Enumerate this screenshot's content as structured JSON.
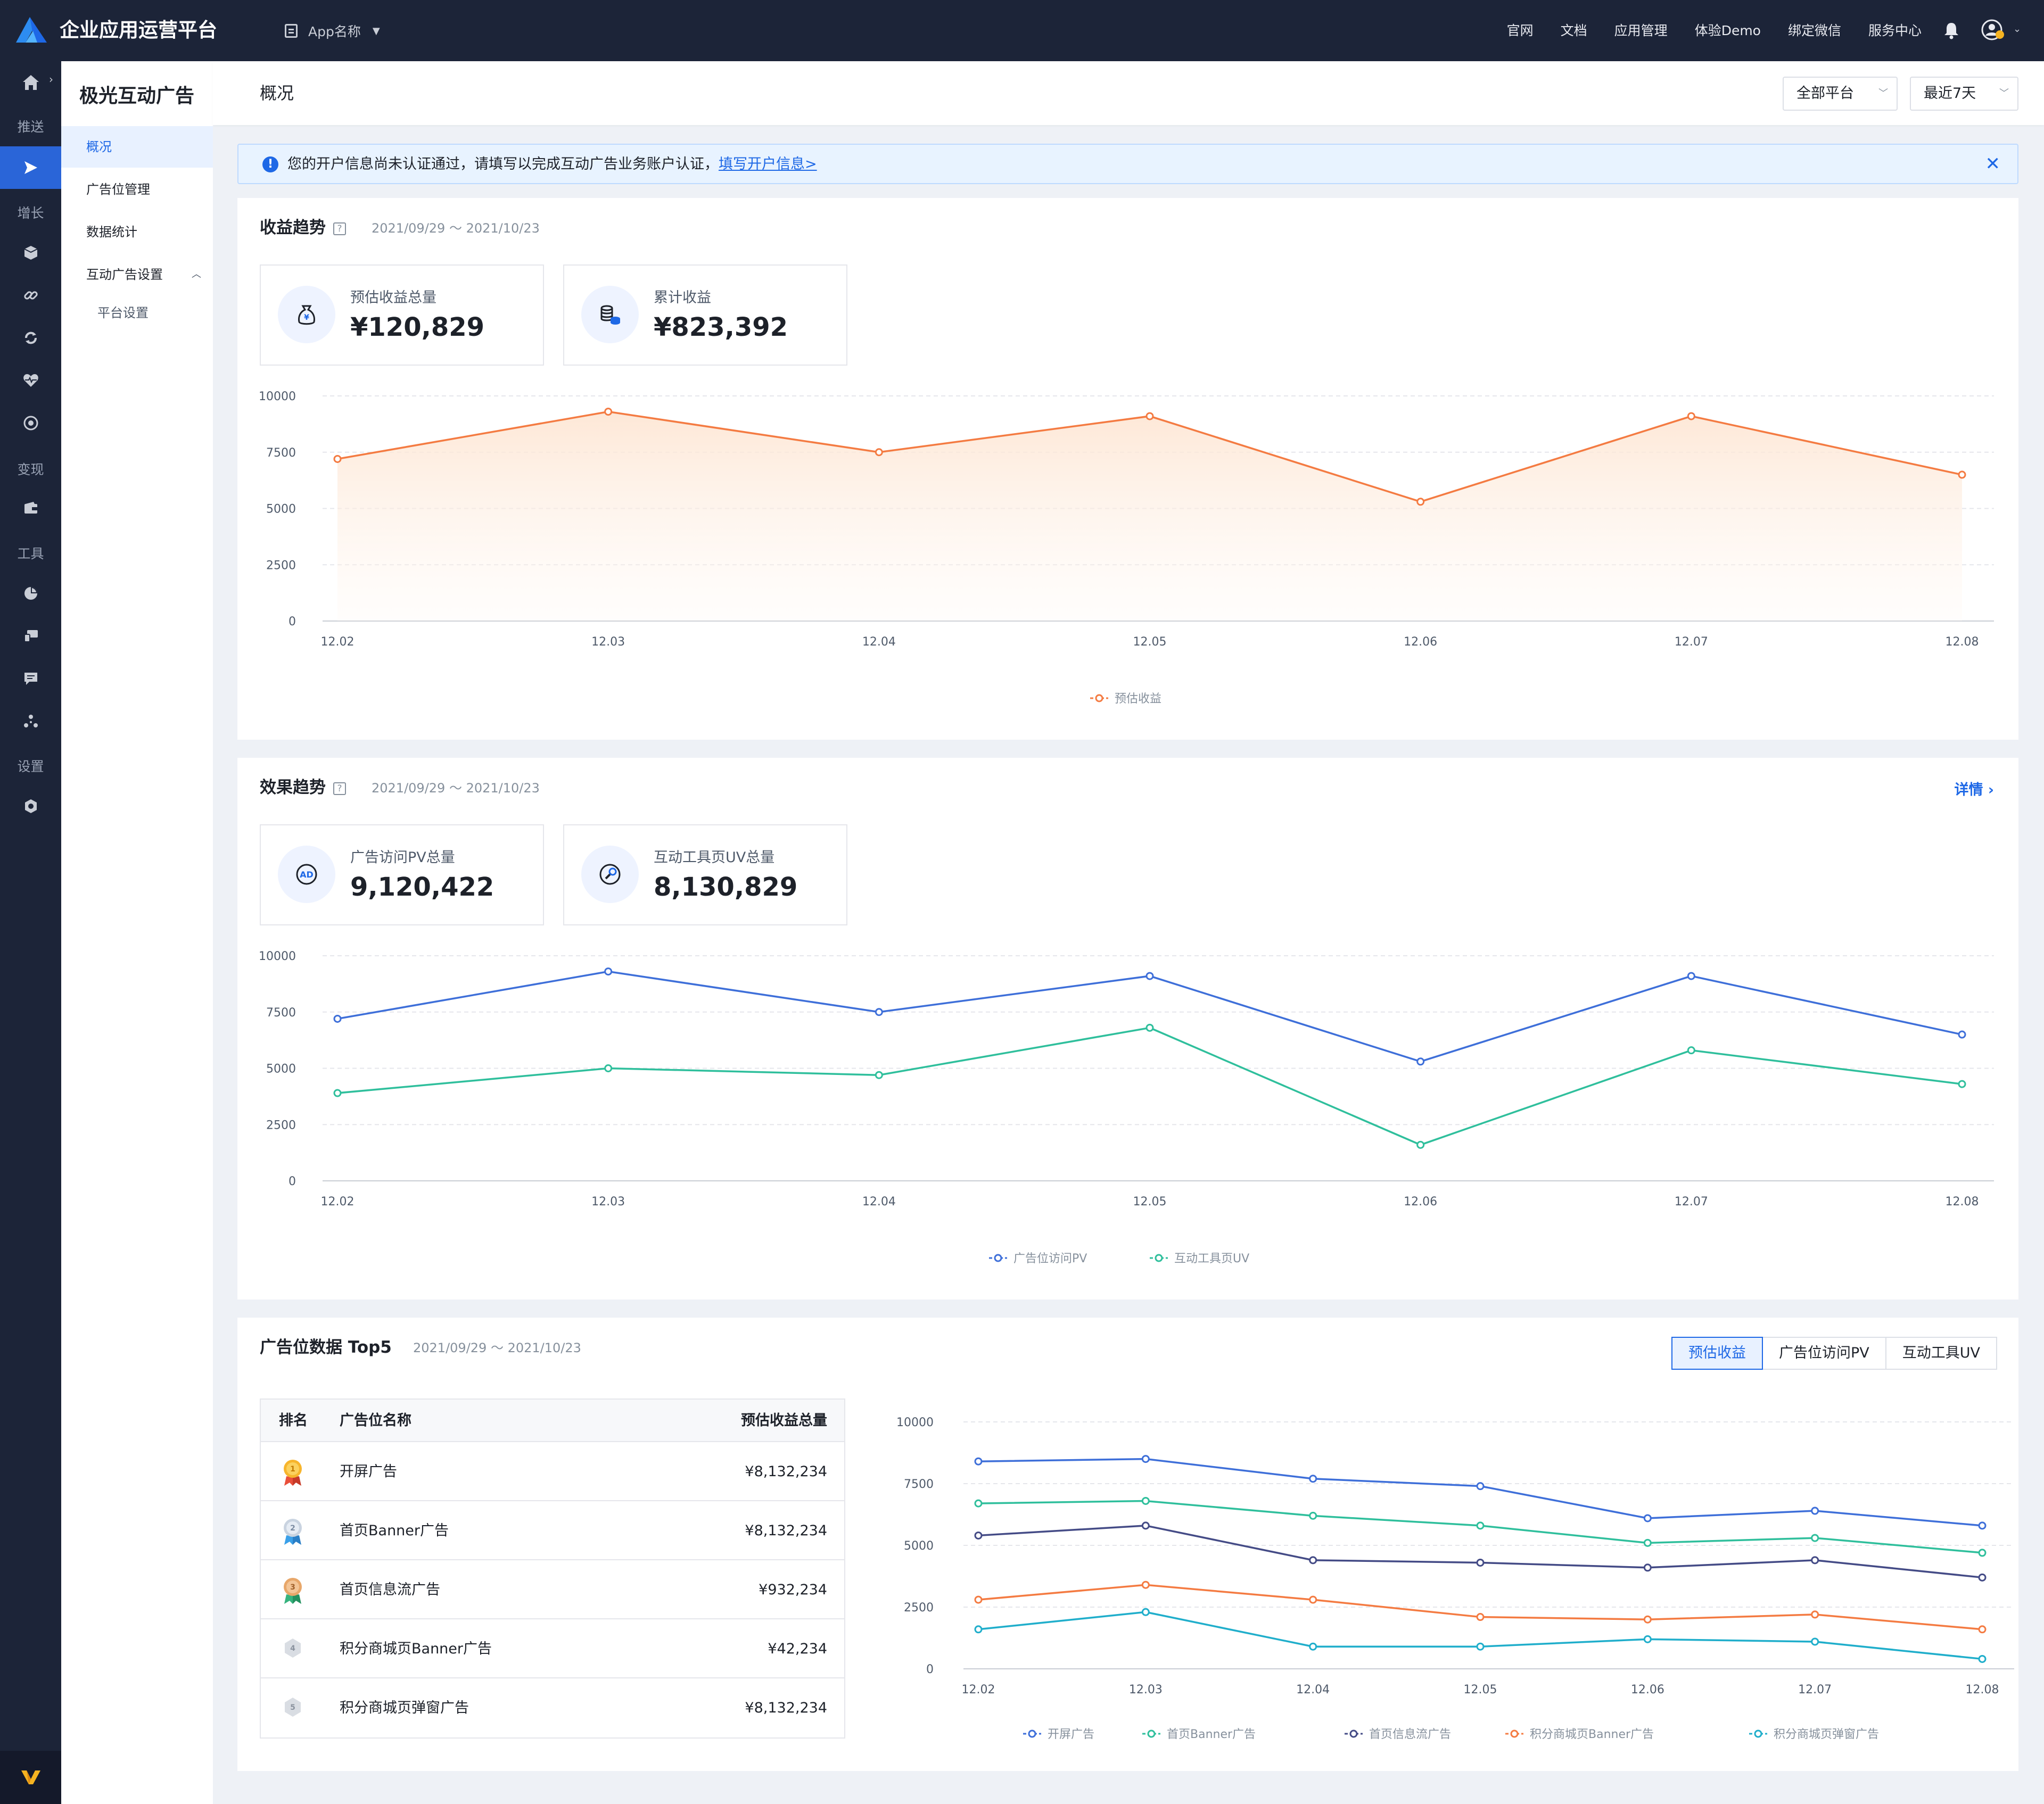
{
  "header": {
    "title": "企业应用运营平台",
    "app_selector": "App名称",
    "nav": [
      "官网",
      "文档",
      "应用管理",
      "体验Demo",
      "绑定微信",
      "服务中心"
    ]
  },
  "iconbar": {
    "labels": [
      "推送",
      "增长",
      "变现",
      "工具",
      "设置"
    ]
  },
  "subnav": {
    "title": "极光互动广告",
    "items": [
      "概况",
      "广告位管理",
      "数据统计",
      "互动广告设置"
    ],
    "subitems": [
      "平台设置"
    ]
  },
  "page": {
    "title": "概况",
    "platform_select": "全部平台",
    "range_select": "最近7天"
  },
  "notice": {
    "text": "您的开户信息尚未认证通过，请填写以完成互动广告业务账户认证，",
    "link": "填写开户信息>"
  },
  "revenue": {
    "title": "收益趋势",
    "date": "2021/09/29 ～ 2021/10/23",
    "stats": [
      {
        "label": "预估收益总量",
        "value": "¥120,829",
        "icon": "money-bag-icon"
      },
      {
        "label": "累计收益",
        "value": "¥823,392",
        "icon": "coins-icon"
      }
    ]
  },
  "effect": {
    "title": "效果趋势",
    "date": "2021/09/29 ～ 2021/10/23",
    "detail": "详情",
    "stats": [
      {
        "label": "广告访问PV总量",
        "value": "9,120,422",
        "icon": "ad-icon"
      },
      {
        "label": "互动工具页UV总量",
        "value": "8,130,829",
        "icon": "tool-icon"
      }
    ]
  },
  "top5": {
    "title": "广告位数据 Top5",
    "date": "2021/09/29 ～ 2021/10/23",
    "tabs": [
      "预估收益",
      "广告位访问PV",
      "互动工具UV"
    ],
    "active_tab": 0,
    "table": {
      "headers": [
        "排名",
        "广告位名称",
        "预估收益总量"
      ],
      "rows": [
        {
          "rank": 1,
          "name": "开屏广告",
          "value": "¥8,132,234"
        },
        {
          "rank": 2,
          "name": "首页Banner广告",
          "value": "¥8,132,234"
        },
        {
          "rank": 3,
          "name": "首页信息流广告",
          "value": "¥932,234"
        },
        {
          "rank": 4,
          "name": "积分商城页Banner广告",
          "value": "¥42,234"
        },
        {
          "rank": 5,
          "name": "积分商城页弹窗广告",
          "value": "¥8,132,234"
        }
      ]
    }
  },
  "colors": {
    "primary": "#1e68e6",
    "sidebar": "#1c2438",
    "orange": "#f47b42",
    "blue": "#3e6fd9",
    "green": "#2fbf9c",
    "navy": "#444b86",
    "cyan": "#20aecb"
  },
  "chart_data": [
    {
      "type": "area",
      "categories": [
        "12.02",
        "12.03",
        "12.04",
        "12.05",
        "12.06",
        "12.07",
        "12.08"
      ],
      "ylim": [
        0,
        10000
      ],
      "yticks": [
        0,
        2500,
        5000,
        7500,
        10000
      ],
      "series": [
        {
          "name": "预估收益",
          "color": "#f47b42",
          "values": [
            7200,
            9300,
            7500,
            9100,
            5300,
            9100,
            6500
          ]
        }
      ],
      "legend": "bottom",
      "grid": true
    },
    {
      "type": "line",
      "categories": [
        "12.02",
        "12.03",
        "12.04",
        "12.05",
        "12.06",
        "12.07",
        "12.08"
      ],
      "ylim": [
        0,
        10000
      ],
      "yticks": [
        0,
        2500,
        5000,
        7500,
        10000
      ],
      "series": [
        {
          "name": "广告位访问PV",
          "color": "#3e6fd9",
          "values": [
            7200,
            9300,
            7500,
            9100,
            5300,
            9100,
            6500
          ]
        },
        {
          "name": "互动工具页UV",
          "color": "#2fbf9c",
          "values": [
            3900,
            5000,
            4700,
            6800,
            1600,
            5800,
            4300
          ]
        }
      ],
      "legend": "bottom",
      "grid": true
    },
    {
      "type": "line",
      "categories": [
        "12.02",
        "12.03",
        "12.04",
        "12.05",
        "12.06",
        "12.07",
        "12.08"
      ],
      "ylim": [
        0,
        10000
      ],
      "yticks": [
        0,
        2500,
        5000,
        7500,
        10000
      ],
      "series": [
        {
          "name": "开屏广告",
          "color": "#3e6fd9",
          "values": [
            8400,
            8500,
            7700,
            7400,
            6100,
            6400,
            5800
          ]
        },
        {
          "name": "首页Banner广告",
          "color": "#2fbf9c",
          "values": [
            6700,
            6800,
            6200,
            5800,
            5100,
            5300,
            4700
          ]
        },
        {
          "name": "首页信息流广告",
          "color": "#444b86",
          "values": [
            5400,
            5800,
            4400,
            4300,
            4100,
            4400,
            3700
          ]
        },
        {
          "name": "积分商城页Banner广告",
          "color": "#f47b42",
          "values": [
            2800,
            3400,
            2800,
            2100,
            2000,
            2200,
            1600
          ]
        },
        {
          "name": "积分商城页弹窗广告",
          "color": "#20aecb",
          "values": [
            1600,
            2300,
            900,
            900,
            1200,
            1100,
            400
          ]
        }
      ],
      "legend": "bottom",
      "grid": true
    }
  ]
}
